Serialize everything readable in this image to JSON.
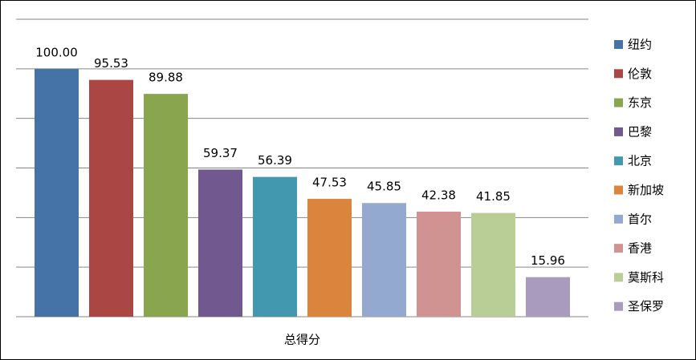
{
  "chart_data": {
    "type": "bar",
    "categories": [
      "总得分"
    ],
    "ylim": [
      0,
      120
    ],
    "yticks": [
      0,
      20,
      40,
      60,
      80,
      100,
      120
    ],
    "grid": true,
    "legend": "right",
    "series": [
      {
        "name": "纽约",
        "color": "#4572a7",
        "values": [
          100
        ],
        "value_labels": [
          "100.00"
        ]
      },
      {
        "name": "伦敦",
        "color": "#aa4643",
        "values": [
          95.53
        ]
      },
      {
        "name": "东京",
        "color": "#89a54e",
        "values": [
          89.88
        ]
      },
      {
        "name": "巴黎",
        "color": "#71588f",
        "values": [
          59.37
        ]
      },
      {
        "name": "北京",
        "color": "#4198af",
        "values": [
          56.39
        ]
      },
      {
        "name": "新加坡",
        "color": "#db843d",
        "values": [
          47.53
        ]
      },
      {
        "name": "首尔",
        "color": "#93a9cf",
        "values": [
          45.85
        ]
      },
      {
        "name": "香港",
        "color": "#d19392",
        "values": [
          42.38
        ]
      },
      {
        "name": "莫斯科",
        "color": "#b9cd96",
        "values": [
          41.85
        ]
      },
      {
        "name": "圣保罗",
        "color": "#a99bbd",
        "values": [
          15.96
        ]
      }
    ]
  }
}
